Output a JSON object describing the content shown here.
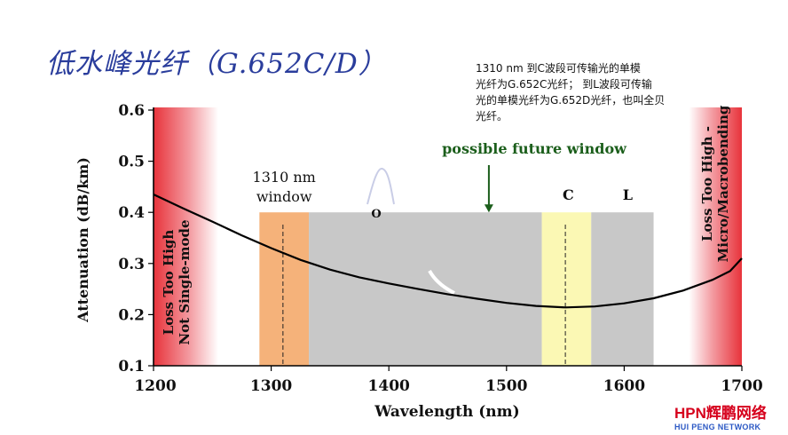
{
  "slide_title": "低水峰光纤（G.652C/D）",
  "note_lines": [
    "1310 nm 到C波段可传输光的单模",
    "光纤为G.652C光纤； 到L波段可传输",
    "光的单模光纤为G.652D光纤，也叫全贝",
    "光纤。"
  ],
  "logo": {
    "main": "HPN辉鹏网络",
    "sub": "HUI PENG NETWORK"
  },
  "chart_data": {
    "type": "line",
    "xlabel": "Wavelength (nm)",
    "ylabel": "Attenuation (dB/km)",
    "xlim": [
      1200,
      1700
    ],
    "ylim": [
      0.1,
      0.6
    ],
    "x_ticks": [
      1200,
      1300,
      1400,
      1500,
      1600,
      1700
    ],
    "y_ticks": [
      0.1,
      0.2,
      0.3,
      0.4,
      0.5,
      0.6
    ],
    "x_tick_labels": [
      "1200",
      "1300",
      "1400",
      "1500",
      "1600",
      "1700"
    ],
    "y_tick_labels": [
      "0.1",
      "0.2",
      "0.3",
      "0.4",
      "0.5",
      "0.6"
    ],
    "grid": false,
    "series": [
      {
        "color": "#000000",
        "x": [
          1200,
          1225,
          1250,
          1275,
          1300,
          1325,
          1350,
          1375,
          1400,
          1425,
          1450,
          1475,
          1500,
          1525,
          1550,
          1575,
          1600,
          1625,
          1650,
          1675,
          1690,
          1700
        ],
        "y": [
          0.435,
          0.408,
          0.382,
          0.355,
          0.33,
          0.307,
          0.288,
          0.273,
          0.261,
          0.25,
          0.24,
          0.231,
          0.223,
          0.217,
          0.214,
          0.216,
          0.222,
          0.232,
          0.247,
          0.268,
          0.285,
          0.31
        ]
      }
    ],
    "regions": [
      {
        "label": "1310 nm window",
        "x_start": 1290,
        "x_end": 1332,
        "top": 0.4,
        "color": "#f5b27a"
      },
      {
        "label": "",
        "x_start": 1332,
        "x_end": 1530,
        "top": 0.4,
        "color": "#c8c8c8"
      },
      {
        "label": "C",
        "x_start": 1530,
        "x_end": 1572,
        "top": 0.4,
        "color": "#fbf8b4"
      },
      {
        "label": "L",
        "x_start": 1572,
        "x_end": 1625,
        "top": 0.4,
        "color": "#c8c8c8"
      }
    ],
    "edge_bands": [
      {
        "text_line1": "Loss Too High",
        "text_line2": "Not Single-mode",
        "x_start": 1200,
        "x_end": 1255
      },
      {
        "text_line1": "Loss Too High -",
        "text_line2": "Micro/Macrobending",
        "x_start": 1655,
        "x_end": 1700
      }
    ],
    "dashed_lines": [
      1310,
      1550
    ],
    "annotations": [
      {
        "text": "possible future window",
        "arrow_x": 1485,
        "arrow_y": 0.4
      }
    ],
    "water_peak_letter": "O"
  }
}
